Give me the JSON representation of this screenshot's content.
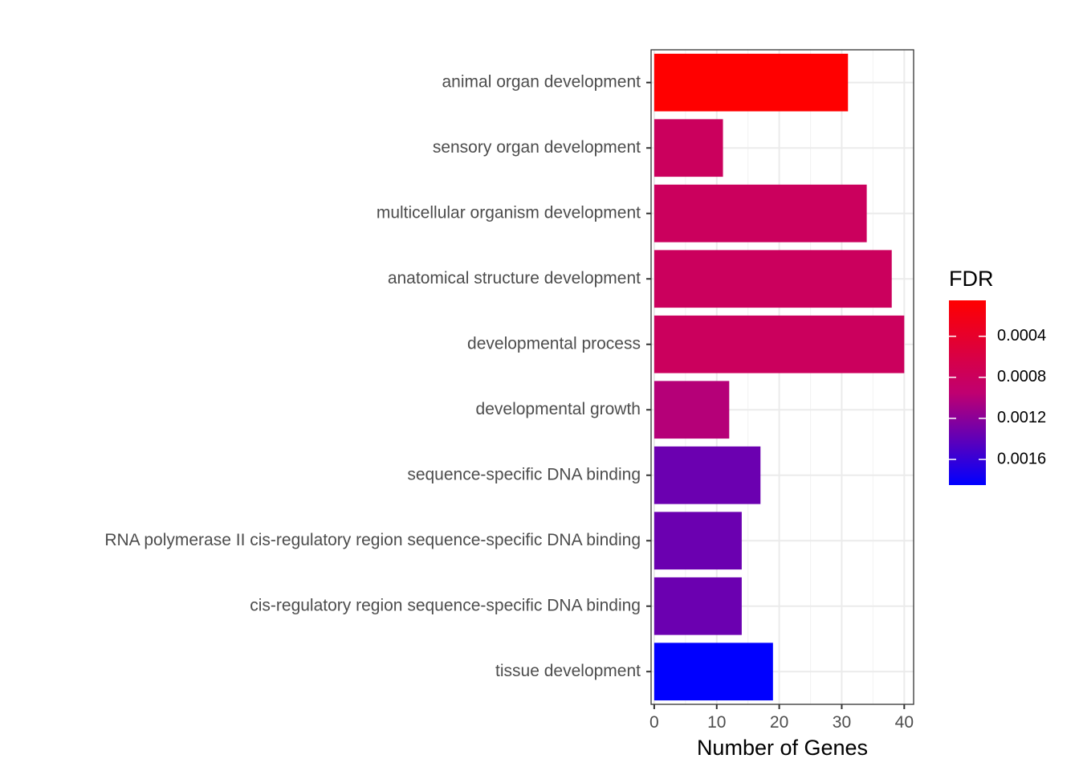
{
  "chart_data": {
    "type": "bar",
    "orientation": "horizontal",
    "categories": [
      "animal organ development",
      "sensory organ development",
      "multicellular organism development",
      "anatomical structure development",
      "developmental process",
      "developmental growth",
      "sequence-specific DNA binding",
      "RNA polymerase II cis-regulatory region sequence-specific DNA binding",
      "cis-regulatory region sequence-specific DNA binding",
      "tissue development"
    ],
    "values": [
      31,
      11,
      34,
      38,
      40,
      12,
      17,
      14,
      14,
      19
    ],
    "fdr": [
      5e-05,
      0.0008,
      0.0008,
      0.0008,
      0.0008,
      0.001,
      0.00135,
      0.00135,
      0.00135,
      0.00185
    ],
    "xlabel": "Number of Genes",
    "ylabel": "",
    "title": "",
    "xlim": [
      -0.5,
      41.5
    ],
    "xticks": [
      0,
      10,
      20,
      30,
      40
    ],
    "grid": true,
    "legend": {
      "title": "FDR",
      "position": "right",
      "type": "colorbar",
      "range": [
        5e-05,
        0.00185
      ],
      "ticks": [
        0.0004,
        0.0008,
        0.0012,
        0.0016
      ],
      "tick_labels": [
        "0.0004",
        "0.0008",
        "0.0012",
        "0.0016"
      ],
      "low_color": "#ff0000",
      "high_color": "#0000ff"
    }
  }
}
